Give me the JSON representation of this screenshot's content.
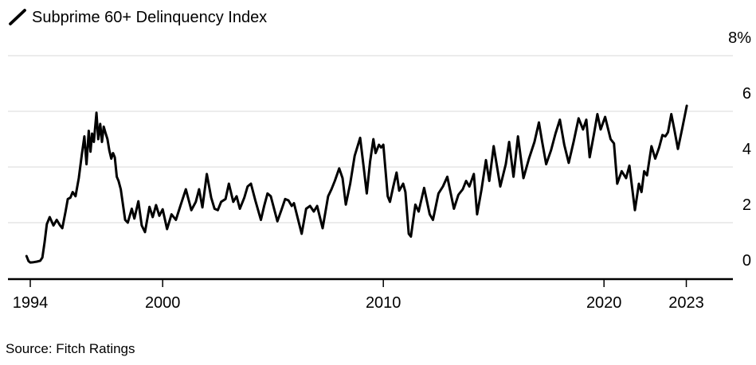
{
  "chart_data": {
    "type": "line",
    "title": "Subprime 60+ Delinquency Index",
    "source": "Source: Fitch Ratings",
    "unit": "%",
    "colors": {
      "line": "#000000",
      "gridline": "#d9d9d9",
      "axis": "#000000",
      "text": "#000000"
    },
    "y_axis": {
      "range": [
        0,
        8
      ],
      "ticks": [
        {
          "value": 8,
          "label": "8%"
        },
        {
          "value": 6,
          "label": "6"
        },
        {
          "value": 4,
          "label": "4"
        },
        {
          "value": 2,
          "label": "2"
        },
        {
          "value": 0,
          "label": "0"
        }
      ],
      "grid": true,
      "label_side": "right"
    },
    "x_axis": {
      "range_years": [
        1993.8,
        2023.85
      ],
      "ticks": [
        {
          "label": "1994",
          "year": 1994.0
        },
        {
          "label": "2000",
          "year": 2000.0
        },
        {
          "label": "2010",
          "year": 2010.0
        },
        {
          "label": "2020",
          "year": 2020.0
        },
        {
          "label": "2023",
          "year": 2023.73
        }
      ]
    },
    "series": [
      {
        "name": "Subprime 60+ Delinquency Index",
        "color": "#000000",
        "points": [
          [
            1993.83,
            0.8
          ],
          [
            1993.92,
            0.62
          ],
          [
            1994.0,
            0.57
          ],
          [
            1994.15,
            0.58
          ],
          [
            1994.3,
            0.6
          ],
          [
            1994.45,
            0.63
          ],
          [
            1994.55,
            0.75
          ],
          [
            1994.65,
            1.3
          ],
          [
            1994.75,
            1.95
          ],
          [
            1994.88,
            2.2
          ],
          [
            1995.05,
            1.9
          ],
          [
            1995.2,
            2.1
          ],
          [
            1995.35,
            1.9
          ],
          [
            1995.45,
            1.8
          ],
          [
            1995.6,
            2.4
          ],
          [
            1995.7,
            2.85
          ],
          [
            1995.82,
            2.9
          ],
          [
            1995.92,
            3.1
          ],
          [
            1996.05,
            2.95
          ],
          [
            1996.2,
            3.6
          ],
          [
            1996.33,
            4.4
          ],
          [
            1996.45,
            5.1
          ],
          [
            1996.55,
            4.1
          ],
          [
            1996.65,
            5.3
          ],
          [
            1996.73,
            4.55
          ],
          [
            1996.8,
            5.2
          ],
          [
            1996.88,
            4.9
          ],
          [
            1997.0,
            5.95
          ],
          [
            1997.08,
            5.0
          ],
          [
            1997.17,
            5.55
          ],
          [
            1997.25,
            4.9
          ],
          [
            1997.33,
            5.45
          ],
          [
            1997.42,
            5.2
          ],
          [
            1997.5,
            5.0
          ],
          [
            1997.58,
            4.6
          ],
          [
            1997.67,
            4.3
          ],
          [
            1997.75,
            4.5
          ],
          [
            1997.83,
            4.35
          ],
          [
            1997.92,
            3.65
          ],
          [
            1998.0,
            3.5
          ],
          [
            1998.1,
            3.2
          ],
          [
            1998.3,
            2.1
          ],
          [
            1998.42,
            2.0
          ],
          [
            1998.6,
            2.5
          ],
          [
            1998.72,
            2.15
          ],
          [
            1998.9,
            2.77
          ],
          [
            1999.05,
            1.9
          ],
          [
            1999.2,
            1.66
          ],
          [
            1999.4,
            2.57
          ],
          [
            1999.55,
            2.2
          ],
          [
            1999.7,
            2.63
          ],
          [
            1999.85,
            2.25
          ],
          [
            2000.0,
            2.48
          ],
          [
            2000.2,
            1.77
          ],
          [
            2000.4,
            2.3
          ],
          [
            2000.6,
            2.1
          ],
          [
            2000.8,
            2.6
          ],
          [
            2001.05,
            3.2
          ],
          [
            2001.3,
            2.45
          ],
          [
            2001.5,
            2.75
          ],
          [
            2001.65,
            3.2
          ],
          [
            2001.8,
            2.55
          ],
          [
            2002.0,
            3.75
          ],
          [
            2002.2,
            2.9
          ],
          [
            2002.35,
            2.5
          ],
          [
            2002.5,
            2.45
          ],
          [
            2002.65,
            2.75
          ],
          [
            2002.85,
            2.85
          ],
          [
            2003.0,
            3.4
          ],
          [
            2003.2,
            2.75
          ],
          [
            2003.35,
            2.95
          ],
          [
            2003.5,
            2.5
          ],
          [
            2003.7,
            2.9
          ],
          [
            2003.85,
            3.3
          ],
          [
            2004.0,
            3.4
          ],
          [
            2004.2,
            2.8
          ],
          [
            2004.45,
            2.1
          ],
          [
            2004.6,
            2.6
          ],
          [
            2004.75,
            3.05
          ],
          [
            2004.9,
            2.95
          ],
          [
            2005.2,
            2.05
          ],
          [
            2005.4,
            2.5
          ],
          [
            2005.55,
            2.85
          ],
          [
            2005.7,
            2.8
          ],
          [
            2005.85,
            2.6
          ],
          [
            2005.95,
            2.7
          ],
          [
            2006.3,
            1.6
          ],
          [
            2006.5,
            2.5
          ],
          [
            2006.68,
            2.6
          ],
          [
            2006.85,
            2.4
          ],
          [
            2007.0,
            2.6
          ],
          [
            2007.25,
            1.8
          ],
          [
            2007.5,
            2.95
          ],
          [
            2007.65,
            3.2
          ],
          [
            2007.8,
            3.5
          ],
          [
            2008.0,
            3.95
          ],
          [
            2008.15,
            3.6
          ],
          [
            2008.3,
            2.65
          ],
          [
            2008.5,
            3.4
          ],
          [
            2008.7,
            4.4
          ],
          [
            2008.95,
            5.05
          ],
          [
            2009.1,
            4.05
          ],
          [
            2009.25,
            3.05
          ],
          [
            2009.4,
            4.2
          ],
          [
            2009.55,
            5.0
          ],
          [
            2009.65,
            4.5
          ],
          [
            2009.8,
            4.8
          ],
          [
            2009.9,
            4.7
          ],
          [
            2010.0,
            4.8
          ],
          [
            2010.2,
            2.95
          ],
          [
            2010.3,
            2.75
          ],
          [
            2010.45,
            3.3
          ],
          [
            2010.6,
            3.8
          ],
          [
            2010.72,
            3.15
          ],
          [
            2010.9,
            3.4
          ],
          [
            2011.0,
            3.1
          ],
          [
            2011.15,
            1.6
          ],
          [
            2011.25,
            1.5
          ],
          [
            2011.45,
            2.65
          ],
          [
            2011.6,
            2.4
          ],
          [
            2011.85,
            3.25
          ],
          [
            2012.1,
            2.3
          ],
          [
            2012.25,
            2.1
          ],
          [
            2012.5,
            3.05
          ],
          [
            2012.7,
            3.3
          ],
          [
            2012.9,
            3.65
          ],
          [
            2013.2,
            2.5
          ],
          [
            2013.4,
            3.0
          ],
          [
            2013.6,
            3.2
          ],
          [
            2013.75,
            3.5
          ],
          [
            2013.9,
            3.3
          ],
          [
            2014.1,
            3.75
          ],
          [
            2014.25,
            2.3
          ],
          [
            2014.45,
            3.2
          ],
          [
            2014.65,
            4.25
          ],
          [
            2014.8,
            3.5
          ],
          [
            2015.0,
            4.75
          ],
          [
            2015.3,
            3.3
          ],
          [
            2015.55,
            4.1
          ],
          [
            2015.7,
            4.9
          ],
          [
            2015.9,
            3.65
          ],
          [
            2016.1,
            5.1
          ],
          [
            2016.35,
            3.6
          ],
          [
            2016.6,
            4.3
          ],
          [
            2016.85,
            4.9
          ],
          [
            2017.05,
            5.6
          ],
          [
            2017.2,
            4.9
          ],
          [
            2017.38,
            4.1
          ],
          [
            2017.6,
            4.6
          ],
          [
            2017.8,
            5.2
          ],
          [
            2018.0,
            5.7
          ],
          [
            2018.2,
            4.8
          ],
          [
            2018.4,
            4.15
          ],
          [
            2018.62,
            4.9
          ],
          [
            2018.85,
            5.75
          ],
          [
            2019.05,
            5.35
          ],
          [
            2019.2,
            5.7
          ],
          [
            2019.35,
            4.35
          ],
          [
            2019.55,
            5.2
          ],
          [
            2019.7,
            5.9
          ],
          [
            2019.85,
            5.35
          ],
          [
            2020.05,
            5.8
          ],
          [
            2020.3,
            5.0
          ],
          [
            2020.45,
            4.85
          ],
          [
            2020.6,
            3.4
          ],
          [
            2020.8,
            3.85
          ],
          [
            2021.0,
            3.6
          ],
          [
            2021.15,
            4.05
          ],
          [
            2021.4,
            2.45
          ],
          [
            2021.58,
            3.4
          ],
          [
            2021.7,
            3.1
          ],
          [
            2021.82,
            3.85
          ],
          [
            2021.95,
            3.7
          ],
          [
            2022.15,
            4.75
          ],
          [
            2022.32,
            4.3
          ],
          [
            2022.5,
            4.7
          ],
          [
            2022.65,
            5.15
          ],
          [
            2022.78,
            5.1
          ],
          [
            2022.9,
            5.25
          ],
          [
            2023.05,
            5.9
          ],
          [
            2023.2,
            5.3
          ],
          [
            2023.35,
            4.65
          ],
          [
            2023.55,
            5.4
          ],
          [
            2023.75,
            6.2
          ]
        ]
      }
    ]
  }
}
